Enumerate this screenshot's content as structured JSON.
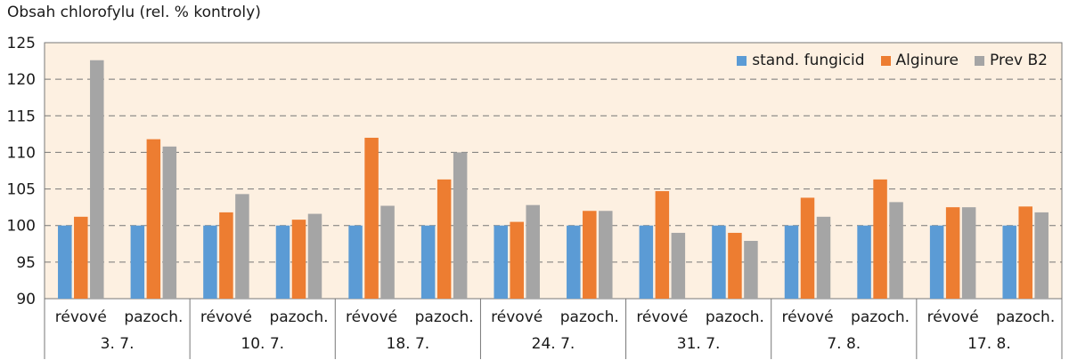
{
  "chart_data": {
    "type": "bar",
    "ylabel": "Obsah chlorofylu (rel. % kontroly)",
    "ylim": [
      90,
      125
    ],
    "yticks": [
      90,
      95,
      100,
      105,
      110,
      115,
      120,
      125
    ],
    "grid": true,
    "legend_position": "top-right",
    "background_color": "#fdf0e1",
    "groups": [
      {
        "date": "3. 7.",
        "subcategories": [
          "révové",
          "pazoch."
        ]
      },
      {
        "date": "10. 7.",
        "subcategories": [
          "révové",
          "pazoch."
        ]
      },
      {
        "date": "18. 7.",
        "subcategories": [
          "révové",
          "pazoch."
        ]
      },
      {
        "date": "24. 7.",
        "subcategories": [
          "révové",
          "pazoch."
        ]
      },
      {
        "date": "31. 7.",
        "subcategories": [
          "révové",
          "pazoch."
        ]
      },
      {
        "date": "7. 8.",
        "subcategories": [
          "révové",
          "pazoch."
        ]
      },
      {
        "date": "17. 8.",
        "subcategories": [
          "révové",
          "pazoch."
        ]
      }
    ],
    "categories": [
      "3. 7. révové",
      "3. 7. pazoch.",
      "10. 7. révové",
      "10. 7. pazoch.",
      "18. 7. révové",
      "18. 7. pazoch.",
      "24. 7. révové",
      "24. 7. pazoch.",
      "31. 7. révové",
      "31. 7. pazoch.",
      "7. 8. révové",
      "7. 8. pazoch.",
      "17. 8. révové",
      "17. 8. pazoch."
    ],
    "series": [
      {
        "name": "stand. fungicid",
        "color": "#5b9bd5",
        "values": [
          100,
          100,
          100,
          100,
          100,
          100,
          100,
          100,
          100,
          100,
          100,
          100,
          100,
          100
        ]
      },
      {
        "name": "Alginure",
        "color": "#ed7d31",
        "values": [
          101.2,
          111.8,
          101.8,
          100.8,
          112,
          106.3,
          100.5,
          102,
          104.7,
          99,
          103.8,
          106.3,
          102.5,
          102.6
        ]
      },
      {
        "name": "Prev B2",
        "color": "#a5a5a5",
        "values": [
          122.6,
          110.8,
          104.3,
          101.6,
          102.7,
          110,
          102.8,
          102,
          99,
          97.9,
          101.2,
          103.2,
          102.5,
          101.8
        ]
      }
    ]
  }
}
